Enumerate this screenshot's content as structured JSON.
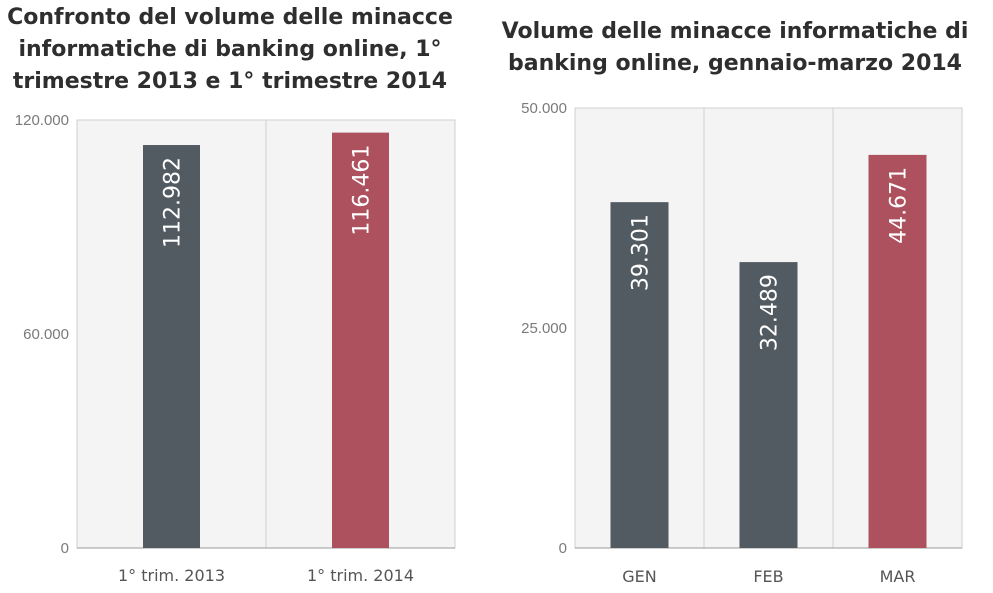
{
  "chart_data": [
    {
      "type": "bar",
      "title": "Confronto del volume delle minacce informatiche di banking online, 1° trimestre 2013 e 1° trimestre 2014",
      "title_lines": [
        "Confronto del volume delle minacce",
        "informatiche di banking online, 1°",
        "trimestre 2013 e 1° trimestre 2014"
      ],
      "categories": [
        "1° trim. 2013",
        "1° trim. 2014"
      ],
      "values": [
        112982,
        116461
      ],
      "value_labels": [
        "112.982",
        "116.461"
      ],
      "colors": [
        "#525a62",
        "#ae515f"
      ],
      "ylim": [
        0,
        120000
      ],
      "yticks": [
        0,
        60000,
        120000
      ],
      "ytick_labels": [
        "0",
        "60.000",
        "120.000"
      ],
      "plot_background": "#f4f4f4",
      "xlabel": "",
      "ylabel": ""
    },
    {
      "type": "bar",
      "title": "Volume delle minacce informatiche di banking online, gennaio-marzo 2014",
      "title_lines": [
        "Volume delle minacce informatiche di",
        "banking online, gennaio-marzo 2014"
      ],
      "categories": [
        "GEN",
        "FEB",
        "MAR"
      ],
      "values": [
        39301,
        32489,
        44671
      ],
      "value_labels": [
        "39.301",
        "32.489",
        "44.671"
      ],
      "colors": [
        "#525a62",
        "#525a62",
        "#ae515f"
      ],
      "ylim": [
        0,
        50000
      ],
      "yticks": [
        0,
        25000,
        50000
      ],
      "ytick_labels": [
        "0",
        "25.000",
        "50.000"
      ],
      "plot_background": "#f4f4f4",
      "xlabel": "",
      "ylabel": ""
    }
  ]
}
